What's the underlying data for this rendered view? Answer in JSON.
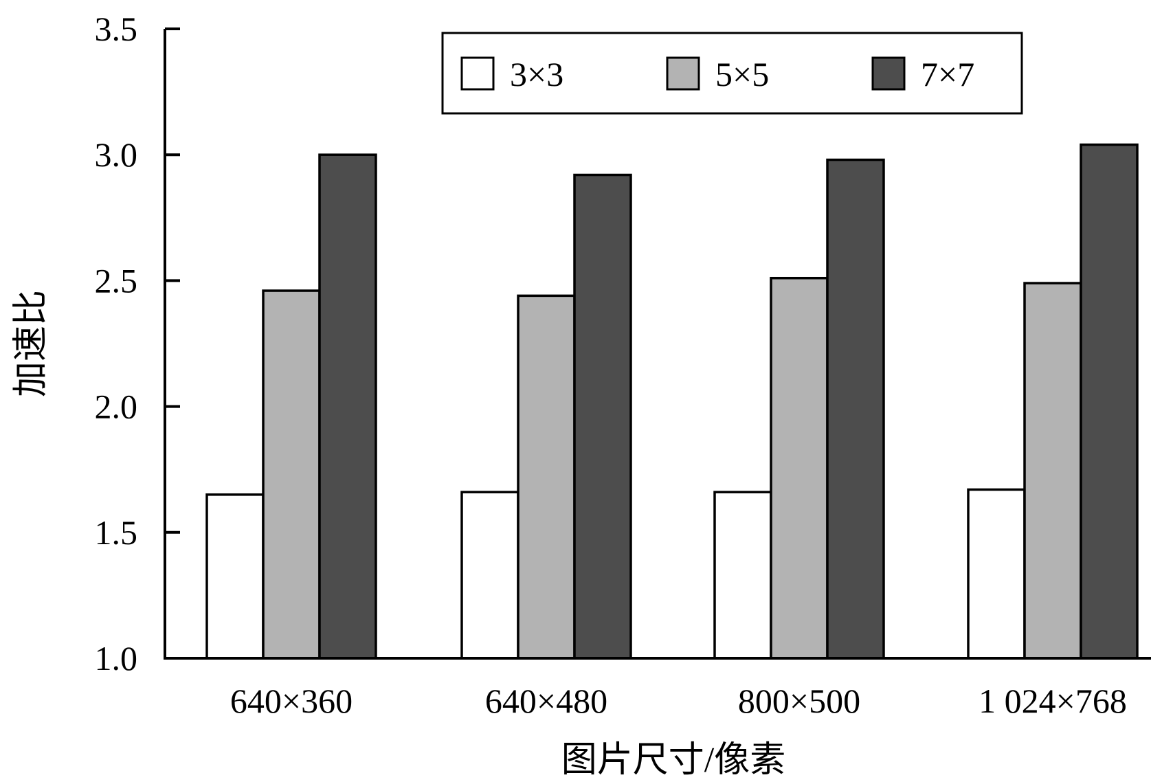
{
  "chart_data": {
    "type": "bar",
    "title": "",
    "xlabel": "图片尺寸/像素",
    "ylabel": "加速比",
    "categories": [
      "640×360",
      "640×480",
      "800×500",
      "1 024×768"
    ],
    "ylim": [
      1.0,
      3.5
    ],
    "yticks": [
      "1.0",
      "1.5",
      "2.0",
      "2.5",
      "3.0",
      "3.5"
    ],
    "grid": false,
    "legend_position": "top",
    "series": [
      {
        "name": "3×3",
        "color": "#ffffff",
        "values": [
          1.65,
          1.66,
          1.66,
          1.67
        ]
      },
      {
        "name": "5×5",
        "color": "#b3b3b3",
        "values": [
          2.46,
          2.44,
          2.51,
          2.49
        ]
      },
      {
        "name": "7×7",
        "color": "#4d4d4d",
        "values": [
          3.0,
          2.92,
          2.98,
          3.04
        ]
      }
    ]
  }
}
